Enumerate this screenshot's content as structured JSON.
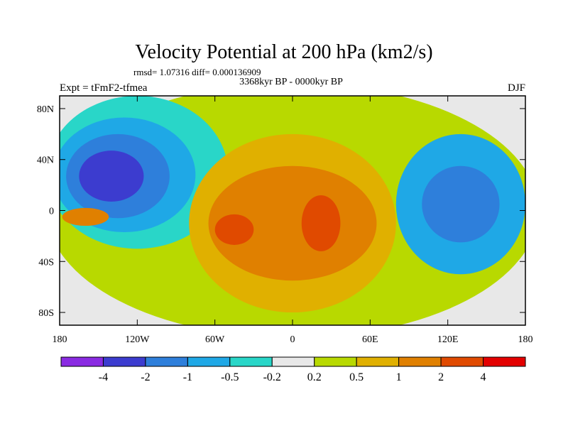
{
  "chart_data": {
    "type": "heatmap",
    "title": "Velocity Potential at 200 hPa (km2/s)",
    "stats_line": "rmsd= 1.07316 diff= 0.000136909",
    "subtitle": "3368kyr BP - 0000kyr BP",
    "left_label": "Expt = tFmF2-tfmea",
    "right_label": "DJF",
    "xlim": [
      -180,
      180
    ],
    "ylim": [
      -90,
      90
    ],
    "x_ticks": [
      {
        "value": -180,
        "label": "180"
      },
      {
        "value": -120,
        "label": "120W"
      },
      {
        "value": -60,
        "label": "60W"
      },
      {
        "value": 0,
        "label": "0"
      },
      {
        "value": 60,
        "label": "60E"
      },
      {
        "value": 120,
        "label": "120E"
      },
      {
        "value": 180,
        "label": "180"
      }
    ],
    "y_ticks": [
      {
        "value": 80,
        "label": "80N"
      },
      {
        "value": 40,
        "label": "40N"
      },
      {
        "value": 0,
        "label": "0"
      },
      {
        "value": -40,
        "label": "40S"
      },
      {
        "value": -80,
        "label": "80S"
      }
    ],
    "colorbar": {
      "bins": [
        {
          "color": "#8a2be2"
        },
        {
          "color": "#3c3ccf"
        },
        {
          "color": "#2e7fdb"
        },
        {
          "color": "#1fa8e6"
        },
        {
          "color": "#29d6c8"
        },
        {
          "color": "#e8e8e8"
        },
        {
          "color": "#b8d900"
        },
        {
          "color": "#e0b000"
        },
        {
          "color": "#e08000"
        },
        {
          "color": "#e04a00"
        },
        {
          "color": "#e30000"
        }
      ],
      "boundary_labels": [
        "-4",
        "-2",
        "-1",
        "-0.5",
        "-0.2",
        "0.2",
        "0.5",
        "1",
        "2",
        "4"
      ]
    },
    "regions": [
      {
        "name": "background-band",
        "color": "#b8d900",
        "cx": 0,
        "cy": 0,
        "rx": 190,
        "ry": 100
      },
      {
        "name": "west-pacific-low",
        "color": "#29d6c8",
        "cx": -120,
        "cy": 30,
        "rx": 70,
        "ry": 60
      },
      {
        "name": "north-pacific-low-2",
        "color": "#1fa8e6",
        "cx": -130,
        "cy": 28,
        "rx": 55,
        "ry": 45
      },
      {
        "name": "north-pacific-low-3",
        "color": "#2e7fdb",
        "cx": -135,
        "cy": 27,
        "rx": 40,
        "ry": 33
      },
      {
        "name": "north-pacific-low-4",
        "color": "#3c3ccf",
        "cx": -140,
        "cy": 27,
        "rx": 25,
        "ry": 20
      },
      {
        "name": "maritime-continent-low",
        "color": "#1fa8e6",
        "cx": 130,
        "cy": 5,
        "rx": 50,
        "ry": 55
      },
      {
        "name": "maritime-continent-low-2",
        "color": "#2e7fdb",
        "cx": 130,
        "cy": 5,
        "rx": 30,
        "ry": 30
      },
      {
        "name": "atlantic-high",
        "color": "#e0b000",
        "cx": 0,
        "cy": -10,
        "rx": 80,
        "ry": 70
      },
      {
        "name": "atlantic-high-2",
        "color": "#e08000",
        "cx": 0,
        "cy": -10,
        "rx": 65,
        "ry": 45
      },
      {
        "name": "south-america-high",
        "color": "#e04a00",
        "cx": -45,
        "cy": -15,
        "rx": 15,
        "ry": 12
      },
      {
        "name": "africa-high",
        "color": "#e04a00",
        "cx": 22,
        "cy": -10,
        "rx": 15,
        "ry": 22
      },
      {
        "name": "east-pacific-high",
        "color": "#e08000",
        "cx": -160,
        "cy": -5,
        "rx": 18,
        "ry": 7
      }
    ]
  }
}
